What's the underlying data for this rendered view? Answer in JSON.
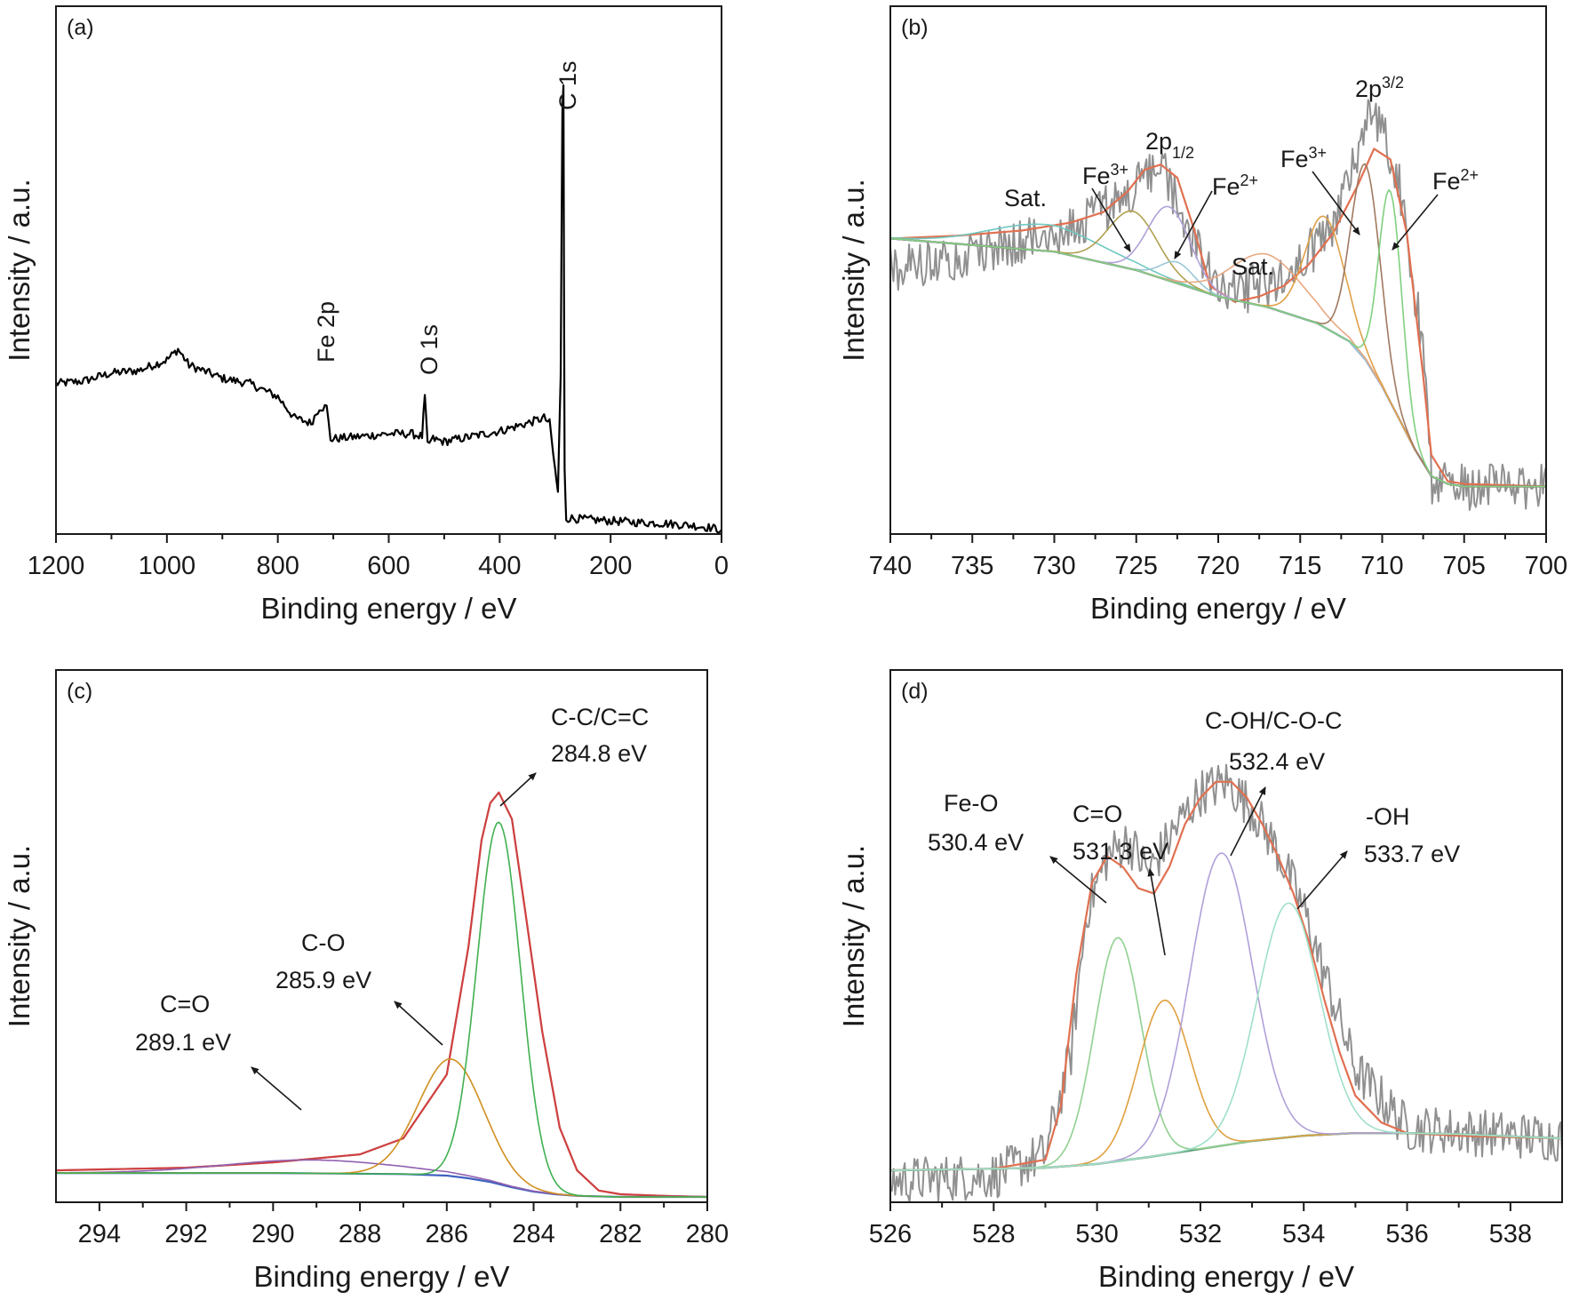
{
  "chart_data": [
    {
      "panel": "(a)",
      "type": "line",
      "xlabel": "Binding energy / eV",
      "ylabel": "Intensity / a.u.",
      "xlim": [
        1200,
        0
      ],
      "xticks": [
        1200,
        1000,
        800,
        600,
        400,
        200,
        0
      ],
      "x_reversed": true,
      "ylim": [
        0,
        100
      ],
      "grid": false,
      "legend": "none",
      "annotations": [
        {
          "text": "Fe 2p",
          "x": 715,
          "y": 32,
          "rotated": true
        },
        {
          "text": "O 1s",
          "x": 535,
          "y": 36,
          "rotated": true
        },
        {
          "text": "C 1s",
          "x": 285,
          "y": 85,
          "rotated": true
        }
      ],
      "series": [
        {
          "color": "#000000",
          "x": [
            1200,
            1150,
            1100,
            1050,
            1000,
            980,
            960,
            900,
            850,
            800,
            770,
            740,
            725,
            712,
            705,
            650,
            600,
            560,
            540,
            535,
            530,
            520,
            500,
            450,
            400,
            350,
            320,
            310,
            300,
            295,
            290,
            287,
            285,
            283,
            280,
            270,
            250,
            200,
            150,
            100,
            50,
            20,
            0
          ],
          "y": [
            28.5,
            29,
            30.5,
            31,
            33,
            35,
            32,
            29.5,
            28.5,
            26,
            22,
            21,
            24,
            24,
            18,
            18.5,
            19,
            19,
            18.5,
            26,
            17,
            18,
            17.5,
            18.5,
            19.5,
            21,
            22,
            21,
            12,
            8,
            30,
            80,
            85,
            12,
            3,
            3,
            2.8,
            2.5,
            2.2,
            2,
            1.6,
            1.2,
            0.8
          ]
        }
      ]
    },
    {
      "panel": "(b)",
      "type": "line",
      "xlabel": "Binding energy / eV",
      "ylabel": "Intensity / a.u.",
      "xlim": [
        740,
        700
      ],
      "xticks": [
        740,
        735,
        730,
        725,
        720,
        715,
        710,
        705,
        700
      ],
      "x_reversed": true,
      "ylim": [
        0,
        100
      ],
      "grid": false,
      "legend": "none",
      "annotations": [
        {
          "text": "Sat.",
          "x": 731.5,
          "y": 71
        },
        {
          "text": "Fe",
          "sup": "3+",
          "x": 726.5,
          "y": 75
        },
        {
          "text": "2p",
          "sub": "1/2",
          "x": 723.5,
          "y": 82
        },
        {
          "text": "Fe",
          "sup": "2+",
          "x": 720.5,
          "y": 73
        },
        {
          "text": "Sat.",
          "x": 718,
          "y": 56
        },
        {
          "text": "Fe",
          "sup": "3+",
          "x": 713.5,
          "y": 77
        },
        {
          "text": "2p",
          "sup": "3/2",
          "x": 710.2,
          "y": 92
        },
        {
          "text": "Fe",
          "sup": "2+",
          "x": 706.5,
          "y": 73
        }
      ],
      "series": [
        {
          "color": "#909090",
          "kind": "raw_noisy",
          "x": [
            740,
            730,
            726,
            723.5,
            720,
            716,
            713,
            711,
            710.5,
            709,
            707.5,
            707,
            705,
            700
          ],
          "y": [
            50,
            57,
            63,
            70,
            45,
            48,
            58,
            78,
            80,
            68,
            35,
            10,
            9,
            9
          ]
        },
        {
          "color": "#e07050",
          "kind": "fit_envelope",
          "x": [
            740,
            736,
            732,
            729,
            727,
            725.5,
            724.5,
            723.5,
            722.5,
            721.5,
            720.5,
            719,
            717.5,
            716,
            714.5,
            713,
            711.5,
            710.5,
            709.5,
            708.5,
            707.5,
            707,
            706,
            705,
            700
          ],
          "y": [
            56,
            56.5,
            57.5,
            59,
            61,
            65,
            69,
            70,
            67.5,
            58,
            47,
            44,
            45,
            47,
            51,
            57,
            66,
            73,
            71,
            57,
            30,
            15,
            10,
            9.5,
            9
          ]
        },
        {
          "color": "#8b5a3c",
          "kind": "background",
          "x": [
            740,
            730,
            725,
            720,
            717,
            714,
            712,
            711,
            710,
            709,
            708,
            707,
            706,
            705,
            700
          ],
          "y": [
            56,
            53.5,
            50,
            45,
            43,
            40,
            36.5,
            33,
            28,
            22,
            16,
            11,
            9.5,
            9,
            9
          ]
        },
        {
          "color": "#4a80d0",
          "kind": "background_base",
          "x": [
            740,
            730,
            725,
            720,
            717,
            714,
            712,
            711,
            710,
            709,
            708,
            707,
            706,
            705,
            700
          ],
          "y": [
            56,
            53.5,
            50,
            45,
            43,
            40,
            36.5,
            33,
            28,
            22,
            16,
            11,
            9.5,
            9,
            9
          ]
        },
        {
          "color": "#70c8c0",
          "kind": "component",
          "name_shown": false,
          "peak_x": 730.5,
          "peak_height": 5,
          "width": 3.5
        },
        {
          "color": "#b0a050",
          "kind": "component",
          "name_shown": false,
          "peak_x": 725.2,
          "peak_height": 11,
          "width": 1.5
        },
        {
          "color": "#b0a0d8",
          "kind": "component",
          "name_shown": false,
          "peak_x": 723.0,
          "peak_height": 14,
          "width": 1.3
        },
        {
          "color": "#9ac8d8",
          "kind": "component",
          "name_shown": false,
          "peak_x": 722.5,
          "peak_height": 4,
          "width": 1.0
        },
        {
          "color": "#e8a880",
          "kind": "component",
          "name_shown": false,
          "peak_x": 717.0,
          "peak_height": 10,
          "width": 2.2
        },
        {
          "color": "#e0a048",
          "kind": "component",
          "name_shown": false,
          "peak_x": 713.5,
          "peak_height": 21,
          "width": 1.2
        },
        {
          "color": "#a07860",
          "kind": "component",
          "name_shown": false,
          "peak_x": 711.0,
          "peak_height": 37,
          "width": 0.9
        },
        {
          "color": "#80d080",
          "kind": "component",
          "name_shown": false,
          "peak_x": 709.5,
          "peak_height": 40,
          "width": 0.7
        }
      ]
    },
    {
      "panel": "(c)",
      "type": "line",
      "xlabel": "Binding energy / eV",
      "ylabel": "Intensity / a.u.",
      "xlim": [
        295,
        280
      ],
      "xticks": [
        294,
        292,
        290,
        288,
        286,
        284,
        282,
        280
      ],
      "x_reversed": true,
      "ylim": [
        0,
        100
      ],
      "grid": false,
      "legend": "none",
      "annotations": [
        {
          "text": "C-C/C=C",
          "text2": "284.8 eV",
          "x": 284.8,
          "y": 96
        },
        {
          "text": "C-O",
          "text2": "285.9 eV",
          "x": 285.9,
          "y": 44
        },
        {
          "text": "C=O",
          "text2": "289.1 eV",
          "x": 289.1,
          "y": 29
        }
      ],
      "series": [
        {
          "color": "#888888",
          "kind": "raw",
          "x": [
            295,
            292,
            290,
            288,
            287,
            286,
            285.5,
            285.2,
            285,
            284.8,
            284.5,
            284.2,
            283.8,
            283.4,
            283,
            282.5,
            282,
            281,
            280
          ],
          "y": [
            6,
            6.5,
            7.5,
            9,
            12,
            24,
            48,
            68,
            75,
            77,
            72,
            55,
            32,
            14,
            6,
            2.2,
            1.5,
            1.2,
            1
          ]
        },
        {
          "color": "#d04040",
          "kind": "fit_envelope",
          "x": [
            295,
            292,
            290,
            288,
            287,
            286,
            285.5,
            285.2,
            285,
            284.8,
            284.5,
            284.2,
            283.8,
            283.4,
            283,
            282.5,
            282,
            281,
            280
          ],
          "y": [
            6,
            6.5,
            7.5,
            9,
            12,
            24,
            48,
            68,
            75,
            77,
            72,
            55,
            32,
            14,
            6,
            2.2,
            1.5,
            1.2,
            1
          ]
        },
        {
          "color": "#4060c0",
          "kind": "background",
          "x": [
            295,
            290,
            287,
            286,
            285.5,
            285,
            284.5,
            284,
            283.5,
            283,
            282,
            280
          ],
          "y": [
            5.5,
            5.5,
            5.3,
            5,
            4.5,
            3.8,
            2.8,
            2,
            1.5,
            1.2,
            1,
            1
          ]
        },
        {
          "color": "#9060b0",
          "kind": "component",
          "peak_x": 289.1,
          "peak_height": 2.5,
          "width": 2.0
        },
        {
          "color": "#d09020",
          "kind": "component",
          "peak_x": 285.9,
          "peak_height": 22,
          "width": 0.75
        },
        {
          "color": "#40b050",
          "kind": "component",
          "peak_x": 284.8,
          "peak_height": 68,
          "width": 0.5
        }
      ]
    },
    {
      "panel": "(d)",
      "type": "line",
      "xlabel": "Binding energy / eV",
      "ylabel": "Intensity / a.u.",
      "xlim": [
        526,
        539
      ],
      "xticks": [
        526,
        528,
        530,
        532,
        534,
        536,
        538
      ],
      "x_reversed": false,
      "ylim": [
        0,
        100
      ],
      "grid": false,
      "legend": "none",
      "annotations": [
        {
          "text": "Fe-O",
          "text2": "530.4 eV",
          "x": 530.4,
          "y": 72
        },
        {
          "text": "C=O",
          "text2": "531.3 eV",
          "x": 531.3,
          "y": 74
        },
        {
          "text": "C-OH/C-O-C",
          "text2": "532.4 eV",
          "x": 532.4,
          "y": 87
        },
        {
          "text": "-OH",
          "text2": "533.7 eV",
          "x": 533.7,
          "y": 72
        }
      ],
      "series": [
        {
          "color": "#909090",
          "kind": "raw_noisy",
          "x": [
            526,
            528,
            529,
            529.5,
            529.8,
            530.2,
            530.6,
            531,
            531.5,
            532,
            532.5,
            533,
            533.5,
            534,
            534.5,
            535,
            536,
            539
          ],
          "y": [
            4,
            5,
            9,
            28,
            55,
            65,
            68,
            62,
            70,
            77,
            79,
            74,
            66,
            55,
            40,
            25,
            14,
            12
          ]
        },
        {
          "color": "#e07050",
          "kind": "fit_envelope",
          "x": [
            526,
            528,
            529,
            529.3,
            529.6,
            529.9,
            530.2,
            530.5,
            530.8,
            531.1,
            531.4,
            531.7,
            532,
            532.3,
            532.6,
            532.9,
            533.2,
            533.5,
            533.8,
            534.1,
            534.4,
            534.7,
            535,
            535.5,
            536,
            537,
            539
          ],
          "y": [
            6,
            6.3,
            8,
            18,
            43,
            60,
            65,
            63,
            59,
            58,
            63,
            71,
            76,
            79,
            79,
            76,
            71,
            65,
            58,
            49,
            38,
            28,
            20,
            15,
            13,
            12.5,
            12
          ]
        },
        {
          "color": "#8a9a50",
          "kind": "background",
          "x": [
            526,
            528,
            529,
            530,
            531,
            532,
            533,
            534,
            535,
            536,
            537,
            539
          ],
          "y": [
            6,
            6.3,
            6.5,
            7.2,
            8.5,
            10,
            11.5,
            12.5,
            13,
            13,
            12.8,
            12
          ]
        },
        {
          "color": "#60a080",
          "kind": "background_base",
          "x": [
            526,
            528,
            529,
            530,
            531,
            532,
            533,
            534,
            535,
            536,
            537,
            539
          ],
          "y": [
            6,
            6.3,
            6.5,
            7.2,
            8.5,
            10,
            11.5,
            12.5,
            13,
            13,
            12.8,
            12
          ]
        },
        {
          "color": "#90d090",
          "kind": "component",
          "peak_x": 530.4,
          "peak_height": 42,
          "width": 0.45
        },
        {
          "color": "#e0a040",
          "kind": "component",
          "peak_x": 531.3,
          "peak_height": 29,
          "width": 0.5
        },
        {
          "color": "#b0a0d8",
          "kind": "component",
          "peak_x": 532.4,
          "peak_height": 55,
          "width": 0.6
        },
        {
          "color": "#a0e0c8",
          "kind": "component",
          "peak_x": 533.7,
          "peak_height": 44,
          "width": 0.6
        }
      ]
    }
  ]
}
